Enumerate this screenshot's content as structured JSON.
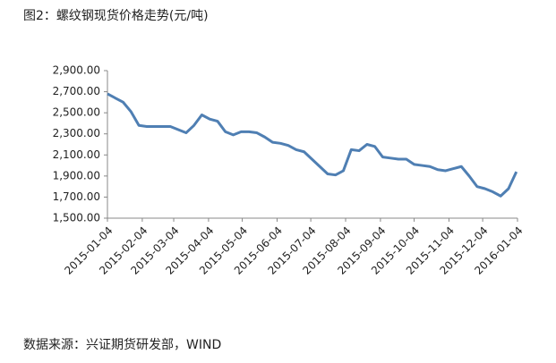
{
  "chart_data": {
    "type": "line",
    "title": "图2：螺纹钢现货价格走势(元/吨)",
    "source": "数据来源：兴证期货研发部，WIND",
    "x": [
      "2015-01-04",
      "2015-01-11",
      "2015-01-18",
      "2015-01-25",
      "2015-02-01",
      "2015-02-08",
      "2015-02-15",
      "2015-02-22",
      "2015-03-01",
      "2015-03-08",
      "2015-03-15",
      "2015-03-22",
      "2015-03-29",
      "2015-04-05",
      "2015-04-12",
      "2015-04-19",
      "2015-04-26",
      "2015-05-03",
      "2015-05-10",
      "2015-05-17",
      "2015-05-24",
      "2015-05-31",
      "2015-06-07",
      "2015-06-14",
      "2015-06-21",
      "2015-06-28",
      "2015-07-05",
      "2015-07-12",
      "2015-07-19",
      "2015-07-26",
      "2015-08-02",
      "2015-08-09",
      "2015-08-16",
      "2015-08-23",
      "2015-08-30",
      "2015-09-06",
      "2015-09-13",
      "2015-09-20",
      "2015-09-27",
      "2015-10-04",
      "2015-10-11",
      "2015-10-18",
      "2015-10-25",
      "2015-11-01",
      "2015-11-08",
      "2015-11-15",
      "2015-11-22",
      "2015-11-29",
      "2015-12-06",
      "2015-12-13",
      "2015-12-20",
      "2015-12-27",
      "2016-01-03"
    ],
    "series": [
      {
        "color": "#4f7fb3",
        "values": [
          2680,
          2640,
          2600,
          2510,
          2380,
          2370,
          2370,
          2370,
          2370,
          2340,
          2310,
          2380,
          2480,
          2440,
          2420,
          2320,
          2290,
          2320,
          2320,
          2310,
          2270,
          2220,
          2210,
          2190,
          2150,
          2130,
          2060,
          1990,
          1920,
          1910,
          1950,
          2150,
          2140,
          2200,
          2180,
          2080,
          2070,
          2060,
          2060,
          2010,
          2000,
          1990,
          1960,
          1950,
          1970,
          1990,
          1900,
          1800,
          1780,
          1750,
          1710,
          1780,
          1940
        ]
      }
    ],
    "xlim": [
      "2015-01-04",
      "2016-01-04"
    ],
    "xticks": [
      "2015-01-04",
      "2015-02-04",
      "2015-03-04",
      "2015-04-04",
      "2015-05-04",
      "2015-06-04",
      "2015-07-04",
      "2015-08-04",
      "2015-09-04",
      "2015-10-04",
      "2015-11-04",
      "2015-12-04",
      "2016-01-04"
    ],
    "ylim": [
      1500,
      2900
    ],
    "yticks": [
      {
        "value": 1500,
        "label": "1,500.00"
      },
      {
        "value": 1700,
        "label": "1,700.00"
      },
      {
        "value": 1900,
        "label": "1,900.00"
      },
      {
        "value": 2100,
        "label": "2,100.00"
      },
      {
        "value": 2300,
        "label": "2,300.00"
      },
      {
        "value": 2500,
        "label": "2,500.00"
      },
      {
        "value": 2700,
        "label": "2,700.00"
      },
      {
        "value": 2900,
        "label": "2,900.00"
      }
    ],
    "grid": false
  }
}
